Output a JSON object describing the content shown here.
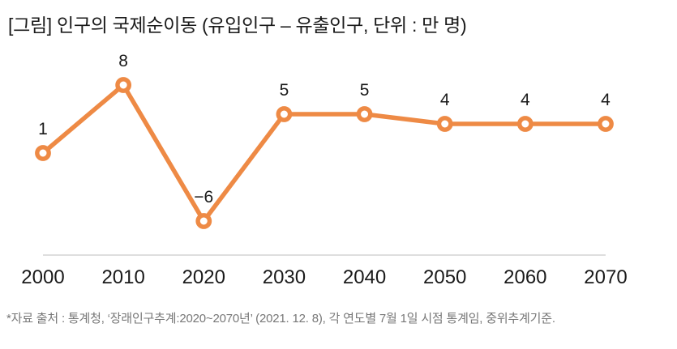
{
  "title": "[그림] 인구의 국제순이동 (유입인구 – 유출인구, 단위 : 만 명)",
  "footnote": "*자료 출처 : 통계청, ‘장래인구추계:2020~2070년’ (2021. 12. 8), 각 연도별 7월 1일 시점 통계임, 중위추계기준.",
  "chart_data": {
    "type": "line",
    "title": "[그림] 인구의 국제순이동 (유입인구 – 유출인구, 단위 : 만 명)",
    "unit": "만 명",
    "categories": [
      "2000",
      "2010",
      "2020",
      "2030",
      "2040",
      "2050",
      "2060",
      "2070"
    ],
    "values": [
      1,
      8,
      -6,
      5,
      5,
      4,
      4,
      4
    ],
    "point_labels": [
      "1",
      "8",
      "−6",
      "5",
      "5",
      "4",
      "4",
      "4"
    ],
    "ylim": [
      -10,
      12
    ],
    "grid": false,
    "legend_position": "none",
    "marker_style": "hollow-circle",
    "colors": {
      "line": "#EE8A45",
      "marker_fill": "#FFFFFF",
      "axis_line": "#CBCBCB",
      "labels": "#1A1A1A",
      "footnote": "#777777"
    }
  }
}
